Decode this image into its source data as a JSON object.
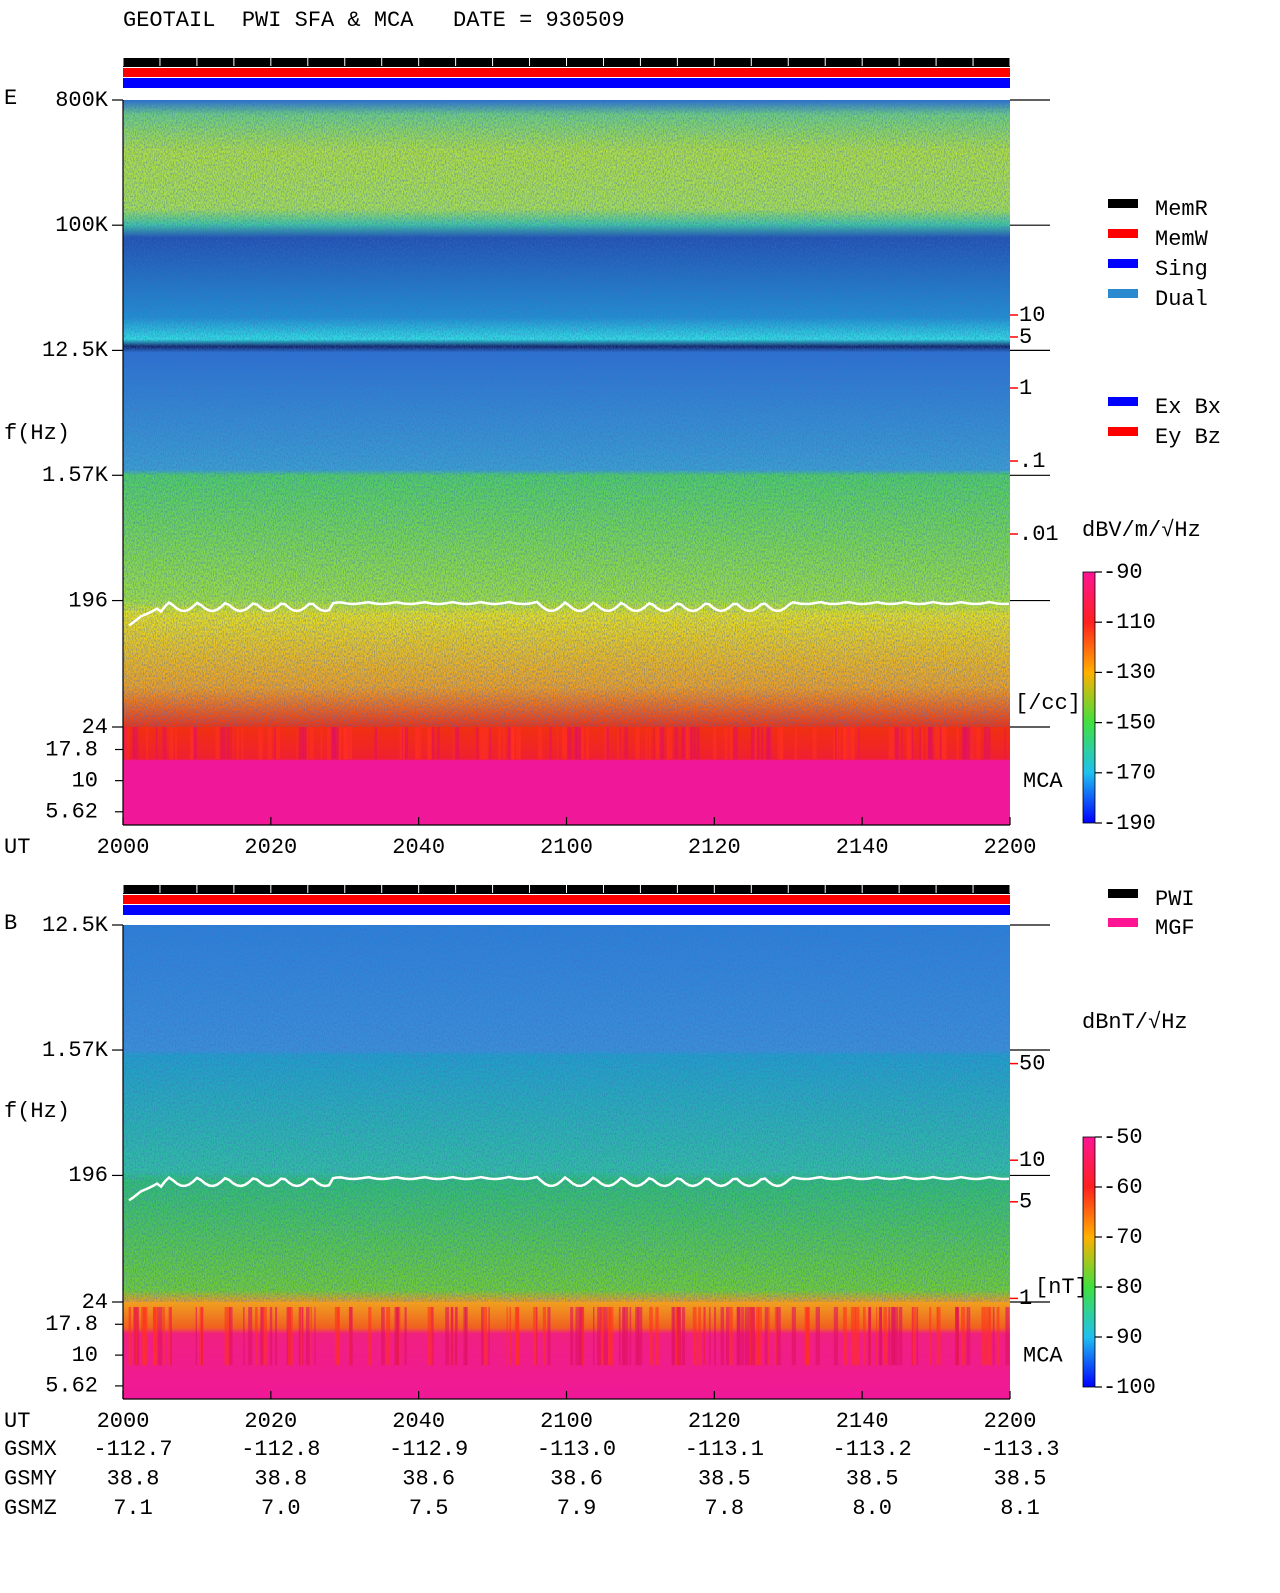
{
  "title": "GEOTAIL  PWI SFA & MCA   DATE = 930509",
  "chart_data": [
    {
      "type": "spectrogram",
      "panel_label": "E",
      "y_label": "f(Hz)",
      "x_label": "UT",
      "log_y": true,
      "ylim": [
        24,
        800000
      ],
      "yticks": [
        {
          "value": 800000,
          "label": "800K"
        },
        {
          "value": 100000,
          "label": "100K"
        },
        {
          "value": 12500,
          "label": "12.5K"
        },
        {
          "value": 1570,
          "label": "1.57K"
        },
        196,
        24
      ],
      "mca_label": "MCA",
      "mca_ylim": [
        4.4,
        27
      ],
      "mca_yticks": [
        17.8,
        10,
        5.62
      ],
      "xlim": [
        1200,
        1320
      ],
      "xticks": [
        {
          "value": 1200,
          "label": "2000"
        },
        {
          "value": 1220,
          "label": "2020"
        },
        {
          "value": 1240,
          "label": "2040"
        },
        {
          "value": 1260,
          "label": "2100"
        },
        {
          "value": 1280,
          "label": "2120"
        },
        {
          "value": 1300,
          "label": "2140"
        },
        {
          "value": 1320,
          "label": "2200"
        }
      ],
      "density_ylim": [
        0.001,
        100
      ],
      "density_yticks": [
        10,
        5,
        1,
        {
          "value": 0.1,
          "label": ".1"
        },
        {
          "value": 0.01,
          "label": ".01"
        }
      ],
      "density_unit": "[/cc]",
      "colorbar": {
        "label": "dBV/m/√Hz",
        "clim": [
          -190,
          -90
        ],
        "ticks": [
          -90,
          -110,
          -130,
          -150,
          -170,
          -190
        ]
      },
      "legend": [
        {
          "name": "MemR",
          "color": "#000000"
        },
        {
          "name": "MemW",
          "color": "#ff0000"
        },
        {
          "name": "Sing",
          "color": "#0000ff"
        },
        {
          "name": "Dual",
          "color": "#2a8ad0"
        }
      ],
      "legend_components": [
        {
          "name": "Ex Bx",
          "color": "#0000ff"
        },
        {
          "name": "Ey Bz",
          "color": "#ff0000"
        }
      ]
    },
    {
      "type": "spectrogram",
      "panel_label": "B",
      "y_label": "f(Hz)",
      "x_label": "UT",
      "log_y": true,
      "ylim": [
        24,
        12500
      ],
      "yticks": [
        {
          "value": 12500,
          "label": "12.5K"
        },
        {
          "value": 1570,
          "label": "1.57K"
        },
        196,
        24
      ],
      "mca_label": "MCA",
      "mca_ylim": [
        4.4,
        27
      ],
      "mca_yticks": [
        17.8,
        10,
        5.62
      ],
      "xlim": [
        1200,
        1320
      ],
      "xticks": [
        {
          "value": 1200,
          "label": "2000"
        },
        {
          "value": 1220,
          "label": "2020"
        },
        {
          "value": 1240,
          "label": "2040"
        },
        {
          "value": 1260,
          "label": "2100"
        },
        {
          "value": 1280,
          "label": "2120"
        },
        {
          "value": 1300,
          "label": "2140"
        },
        {
          "value": 1320,
          "label": "2200"
        }
      ],
      "density_ylim": [
        0.5,
        100
      ],
      "density_yticks": [
        50,
        10,
        5,
        1
      ],
      "density_unit": "[nT]",
      "colorbar": {
        "label": "dBnT/√Hz",
        "clim": [
          -100,
          -50
        ],
        "ticks": [
          -50,
          -60,
          -70,
          -80,
          -90,
          -100
        ]
      },
      "legend": [
        {
          "name": "PWI",
          "color": "#000000"
        },
        {
          "name": "MGF",
          "color": "#ff1493"
        }
      ]
    }
  ],
  "ephemeris": {
    "rows": [
      {
        "label": "GSMX",
        "values": [
          "-112.7",
          "-112.8",
          "-112.9",
          "-113.0",
          "-113.1",
          "-113.2",
          "-113.3"
        ]
      },
      {
        "label": "GSMY",
        "values": [
          "38.8",
          "38.8",
          "38.6",
          "38.6",
          "38.5",
          "38.5",
          "38.5"
        ]
      },
      {
        "label": "GSMZ",
        "values": [
          "7.1",
          "7.0",
          "7.5",
          "7.9",
          "7.8",
          "8.0",
          "8.1"
        ]
      }
    ]
  }
}
